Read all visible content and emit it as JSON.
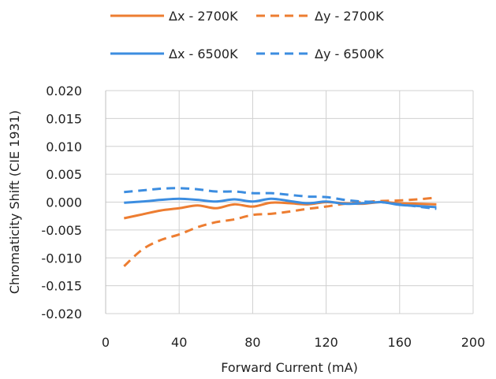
{
  "chart_data": {
    "type": "line",
    "title": "",
    "xlabel": "Forward Current (mA)",
    "ylabel": "Chromaticity Shift (CIE 1931)",
    "xlim": [
      0,
      200
    ],
    "ylim": [
      -0.02,
      0.02
    ],
    "xticks": [
      0,
      40,
      80,
      120,
      160,
      200
    ],
    "yticks": [
      0.02,
      0.015,
      0.01,
      0.005,
      0.0,
      -0.005,
      -0.01,
      -0.015,
      -0.02
    ],
    "xtick_labels": [
      "0",
      "40",
      "80",
      "120",
      "160",
      "200"
    ],
    "ytick_labels": [
      "0.020",
      "0.015",
      "0.010",
      "0.005",
      "0.000",
      "-0.005",
      "-0.010",
      "-0.015",
      "-0.020"
    ],
    "grid": true,
    "legend_position": "top",
    "series": [
      {
        "name": "Δx - 2700K",
        "color": "#ED7D31",
        "dash": "solid",
        "x": [
          10,
          20,
          30,
          40,
          50,
          60,
          70,
          80,
          90,
          100,
          110,
          120,
          130,
          140,
          150,
          160,
          170,
          180
        ],
        "y": [
          -0.0029,
          -0.0022,
          -0.0015,
          -0.0011,
          -0.0006,
          -0.0011,
          -0.0004,
          -0.0008,
          -0.0001,
          -0.0002,
          -0.0004,
          0.0,
          -0.0002,
          -0.0003,
          0.0,
          -0.0002,
          -0.0003,
          -0.0004
        ]
      },
      {
        "name": "Δy - 2700K",
        "color": "#ED7D31",
        "dash": "dashed",
        "x": [
          10,
          20,
          30,
          40,
          50,
          60,
          70,
          80,
          90,
          100,
          110,
          120,
          130,
          140,
          150,
          160,
          170,
          180
        ],
        "y": [
          -0.0115,
          -0.0085,
          -0.0068,
          -0.0058,
          -0.0045,
          -0.0036,
          -0.0031,
          -0.0023,
          -0.0021,
          -0.0017,
          -0.0012,
          -0.0008,
          -0.0003,
          0.0,
          0.0002,
          0.0003,
          0.0005,
          0.0008
        ]
      },
      {
        "name": "Δx - 6500K",
        "color": "#3C8DE0",
        "dash": "solid",
        "x": [
          10,
          20,
          30,
          40,
          50,
          60,
          70,
          80,
          90,
          100,
          110,
          120,
          130,
          140,
          150,
          160,
          170,
          180
        ],
        "y": [
          -0.0001,
          0.0001,
          0.0004,
          0.0006,
          0.0004,
          0.0001,
          0.0005,
          0.0001,
          0.0006,
          0.0002,
          -0.0002,
          0.0001,
          -0.0003,
          -0.0002,
          0.0,
          -0.0005,
          -0.0007,
          -0.0009
        ]
      },
      {
        "name": "Δy - 6500K",
        "color": "#3C8DE0",
        "dash": "dashed",
        "x": [
          10,
          20,
          30,
          40,
          50,
          60,
          70,
          80,
          90,
          100,
          110,
          120,
          130,
          140,
          150,
          160,
          170,
          180
        ],
        "y": [
          0.0018,
          0.0021,
          0.0024,
          0.0025,
          0.0023,
          0.0019,
          0.0019,
          0.0016,
          0.0016,
          0.0013,
          0.001,
          0.0009,
          0.0004,
          0.0001,
          0.0,
          -0.0004,
          -0.0008,
          -0.0012
        ]
      }
    ]
  }
}
